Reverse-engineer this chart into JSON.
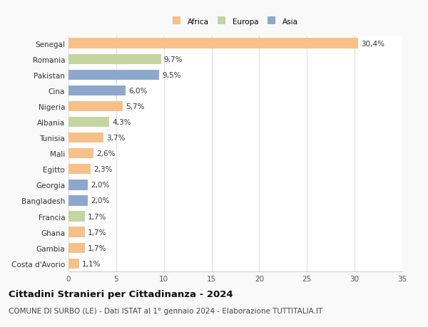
{
  "countries": [
    "Senegal",
    "Romania",
    "Pakistan",
    "Cina",
    "Nigeria",
    "Albania",
    "Tunisia",
    "Mali",
    "Egitto",
    "Georgia",
    "Bangladesh",
    "Francia",
    "Ghana",
    "Gambia",
    "Costa d'Avorio"
  ],
  "values": [
    30.4,
    9.7,
    9.5,
    6.0,
    5.7,
    4.3,
    3.7,
    2.6,
    2.3,
    2.0,
    2.0,
    1.7,
    1.7,
    1.7,
    1.1
  ],
  "labels": [
    "30,4%",
    "9,7%",
    "9,5%",
    "6,0%",
    "5,7%",
    "4,3%",
    "3,7%",
    "2,6%",
    "2,3%",
    "2,0%",
    "2,0%",
    "1,7%",
    "1,7%",
    "1,7%",
    "1,1%"
  ],
  "continents": [
    "Africa",
    "Europa",
    "Asia",
    "Asia",
    "Africa",
    "Europa",
    "Africa",
    "Africa",
    "Africa",
    "Asia",
    "Asia",
    "Europa",
    "Africa",
    "Africa",
    "Africa"
  ],
  "colors": {
    "Africa": "#F5C08A",
    "Europa": "#C5D4A0",
    "Asia": "#8DA8CC"
  },
  "legend_labels": [
    "Africa",
    "Europa",
    "Asia"
  ],
  "legend_colors": [
    "#F5C08A",
    "#C5D4A0",
    "#8DA8CC"
  ],
  "title": "Cittadini Stranieri per Cittadinanza - 2024",
  "subtitle": "COMUNE DI SURBO (LE) - Dati ISTAT al 1° gennaio 2024 - Elaborazione TUTTITALIA.IT",
  "xlim": [
    0,
    35
  ],
  "xticks": [
    0,
    5,
    10,
    15,
    20,
    25,
    30,
    35
  ],
  "bg_color": "#f9f9f9",
  "bar_bg_color": "#ffffff",
  "grid_color": "#dddddd",
  "label_fontsize": 7.5,
  "title_fontsize": 9.5,
  "subtitle_fontsize": 7.5,
  "tick_fontsize": 7.5
}
